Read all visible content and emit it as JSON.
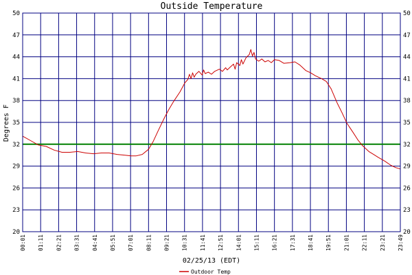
{
  "chart_data": {
    "type": "line",
    "title": "Outside Temperature",
    "ylabel": "Degrees F",
    "xlabel": "02/25/13 (EDT)",
    "ylim": [
      20,
      50
    ],
    "y_ticks": [
      "20",
      "23",
      "26",
      "29",
      "32",
      "35",
      "38",
      "41",
      "44",
      "47",
      "50"
    ],
    "x_tick_labels": [
      "00:01",
      "01:11",
      "02:21",
      "03:31",
      "04:41",
      "05:51",
      "07:01",
      "08:11",
      "09:21",
      "10:31",
      "11:41",
      "12:51",
      "14:01",
      "15:11",
      "16:21",
      "17:31",
      "18:41",
      "19:51",
      "21:01",
      "22:11",
      "23:21",
      "23:49"
    ],
    "reference_line": {
      "value": 32,
      "color": "#008000"
    },
    "grid": true,
    "legend_position": "bottom-center",
    "series": [
      {
        "name": "Outdoor Temp",
        "color": "#cc0000",
        "x": [
          0,
          0.5,
          1,
          1.5,
          2,
          2.5,
          3,
          3.5,
          4,
          4.5,
          5,
          5.5,
          6,
          6.5,
          6.9,
          7.2,
          7.6,
          8,
          8.3,
          8.6,
          9,
          9.3,
          9.6,
          10,
          10.3,
          10.5,
          10.6,
          10.7,
          10.8,
          10.9,
          11,
          11.2,
          11.4,
          11.5,
          11.6,
          11.8,
          12,
          12.2,
          12.5,
          12.7,
          12.9,
          13,
          13.2,
          13.4,
          13.5,
          13.6,
          13.8,
          13.9,
          14,
          14.2,
          14.4,
          14.5,
          14.6,
          14.7,
          14.8,
          15,
          15.2,
          15.4,
          15.6,
          15.8,
          16,
          16.3,
          16.6,
          17,
          17.3,
          17.6,
          18,
          18.3,
          18.6,
          19,
          19.3,
          19.6,
          20,
          20.3,
          20.6,
          21,
          21.3,
          21.6,
          22,
          22.3,
          22.6,
          23,
          23.4,
          23.7,
          24
        ],
        "values": [
          33.1,
          32.5,
          31.9,
          31.7,
          31.2,
          30.9,
          30.9,
          31.0,
          30.8,
          30.7,
          30.8,
          30.8,
          30.6,
          30.5,
          30.4,
          30.4,
          30.6,
          31.3,
          32.4,
          33.8,
          35.6,
          36.8,
          37.9,
          39.2,
          40.4,
          40.9,
          41.6,
          41.0,
          41.8,
          41.2,
          41.6,
          42.0,
          41.5,
          42.2,
          41.7,
          41.9,
          41.6,
          42.0,
          42.3,
          42.0,
          42.5,
          42.2,
          42.6,
          43.0,
          42.3,
          43.2,
          42.8,
          43.6,
          43.0,
          43.9,
          44.3,
          45.0,
          44.1,
          44.6,
          43.7,
          43.4,
          43.7,
          43.3,
          43.5,
          43.2,
          43.6,
          43.5,
          43.1,
          43.2,
          43.3,
          42.9,
          42.1,
          41.8,
          41.4,
          41.0,
          40.6,
          39.6,
          37.6,
          36.3,
          34.9,
          33.6,
          32.6,
          31.8,
          31.0,
          30.6,
          30.2,
          29.7,
          29.1,
          28.8,
          28.6
        ]
      }
    ]
  }
}
